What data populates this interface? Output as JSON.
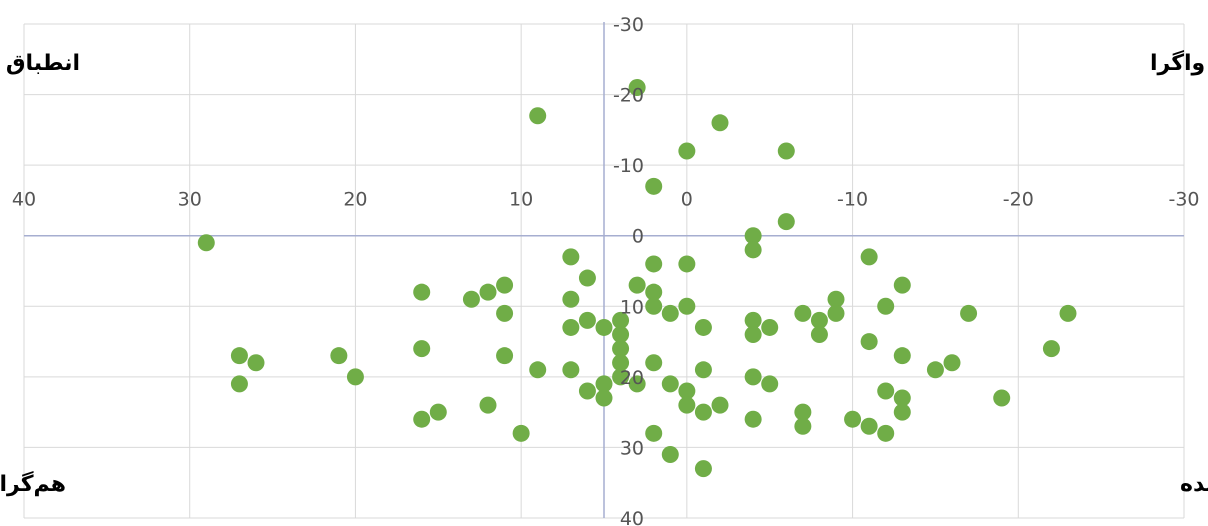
{
  "chart_data": {
    "type": "scatter",
    "title": "",
    "xlabel": "",
    "ylabel": "",
    "xlim": [
      40,
      -30
    ],
    "ylim": [
      -30,
      40
    ],
    "x_reversed": true,
    "y_reversed": true,
    "x_axis_crosses_y_at": 0,
    "y_axis_crosses_x_at": 5,
    "grid": true,
    "legend": "none",
    "colors": {
      "points": "#70ad47",
      "grid": "#d9d9d9",
      "axis": "#a6aed0",
      "tick_text": "#555555"
    },
    "x_tick_labels": [
      "40",
      "30",
      "20",
      "10",
      "0",
      "-10",
      "-20",
      "-30"
    ],
    "y_tick_labels": [
      "-30",
      "-20",
      "-10",
      "0",
      "10",
      "20",
      "30",
      "40"
    ],
    "quadrant_labels": {
      "top_left": "انطباق یابنده",
      "top_right": "واگرا",
      "bottom_left": "هم‌گرا",
      "bottom_right": "جذب کننده"
    },
    "series": [
      {
        "points": [
          [
            29,
            1
          ],
          [
            27,
            17
          ],
          [
            27,
            21
          ],
          [
            26,
            18
          ],
          [
            21,
            17
          ],
          [
            20,
            20
          ],
          [
            16,
            8
          ],
          [
            16,
            16
          ],
          [
            16,
            26
          ],
          [
            15,
            25
          ],
          [
            13,
            9
          ],
          [
            12,
            8
          ],
          [
            12,
            24
          ],
          [
            11,
            7
          ],
          [
            11,
            11
          ],
          [
            11,
            17
          ],
          [
            10,
            28
          ],
          [
            9,
            -17
          ],
          [
            9,
            19
          ],
          [
            7,
            3
          ],
          [
            7,
            9
          ],
          [
            7,
            13
          ],
          [
            7,
            19
          ],
          [
            6,
            6
          ],
          [
            6,
            12
          ],
          [
            6,
            22
          ],
          [
            5,
            13
          ],
          [
            5,
            21
          ],
          [
            5,
            23
          ],
          [
            4,
            12
          ],
          [
            4,
            14
          ],
          [
            4,
            16
          ],
          [
            4,
            18
          ],
          [
            4,
            20
          ],
          [
            3,
            -21
          ],
          [
            3,
            7
          ],
          [
            3,
            21
          ],
          [
            2,
            -7
          ],
          [
            2,
            4
          ],
          [
            2,
            8
          ],
          [
            2,
            10
          ],
          [
            2,
            18
          ],
          [
            2,
            28
          ],
          [
            1,
            11
          ],
          [
            1,
            21
          ],
          [
            1,
            31
          ],
          [
            0,
            -12
          ],
          [
            0,
            4
          ],
          [
            0,
            10
          ],
          [
            0,
            22
          ],
          [
            0,
            24
          ],
          [
            -1,
            13
          ],
          [
            -1,
            19
          ],
          [
            -1,
            25
          ],
          [
            -1,
            33
          ],
          [
            -2,
            -16
          ],
          [
            -2,
            24
          ],
          [
            -4,
            0
          ],
          [
            -4,
            2
          ],
          [
            -4,
            12
          ],
          [
            -4,
            14
          ],
          [
            -4,
            20
          ],
          [
            -4,
            26
          ],
          [
            -5,
            13
          ],
          [
            -5,
            21
          ],
          [
            -6,
            -12
          ],
          [
            -6,
            -2
          ],
          [
            -7,
            11
          ],
          [
            -7,
            25
          ],
          [
            -7,
            27
          ],
          [
            -8,
            12
          ],
          [
            -8,
            14
          ],
          [
            -9,
            9
          ],
          [
            -9,
            11
          ],
          [
            -10,
            26
          ],
          [
            -11,
            3
          ],
          [
            -11,
            15
          ],
          [
            -11,
            27
          ],
          [
            -12,
            10
          ],
          [
            -12,
            22
          ],
          [
            -12,
            28
          ],
          [
            -13,
            7
          ],
          [
            -13,
            17
          ],
          [
            -13,
            23
          ],
          [
            -13,
            25
          ],
          [
            -15,
            19
          ],
          [
            -16,
            18
          ],
          [
            -17,
            11
          ],
          [
            -19,
            23
          ],
          [
            -22,
            16
          ],
          [
            -23,
            11
          ]
        ]
      }
    ]
  }
}
